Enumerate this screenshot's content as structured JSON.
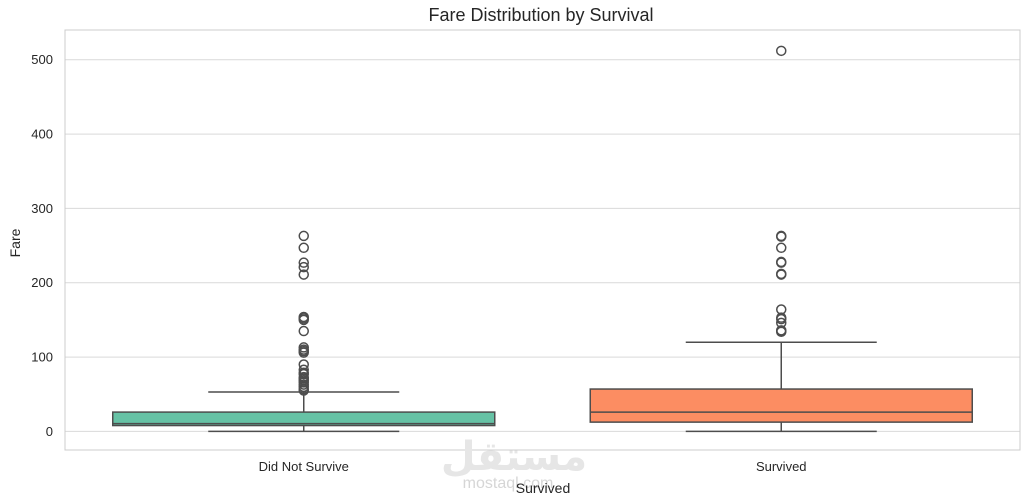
{
  "chart_data": {
    "type": "box",
    "title": "Fare Distribution by Survival",
    "xlabel": "Survived",
    "ylabel": "Fare",
    "ylim": [
      -25,
      540
    ],
    "yticks": [
      0,
      100,
      200,
      300,
      400,
      500
    ],
    "grid": true,
    "categories": [
      "Did Not Survive",
      "Survived"
    ],
    "boxes": [
      {
        "name": "Did Not Survive",
        "color": "#66c2a5",
        "whisker_low": 0,
        "q1": 7.9,
        "median": 10.5,
        "q3": 26,
        "whisker_high": 53,
        "outliers": [
          55,
          57,
          60,
          63,
          66,
          69,
          71,
          73,
          77,
          79,
          83,
          90,
          106,
          108,
          110,
          113,
          135,
          150,
          152,
          154,
          211,
          221,
          227,
          247,
          263
        ]
      },
      {
        "name": "Survived",
        "color": "#fc8d62",
        "whisker_low": 0,
        "q1": 12.5,
        "median": 26,
        "q3": 57,
        "whisker_high": 120,
        "outliers": [
          134,
          135,
          136,
          146,
          151,
          153,
          164,
          211,
          212,
          227,
          228,
          247,
          262,
          263,
          512
        ]
      }
    ]
  },
  "watermark": {
    "text": "مستقل",
    "subtext": "mostaql.com"
  }
}
